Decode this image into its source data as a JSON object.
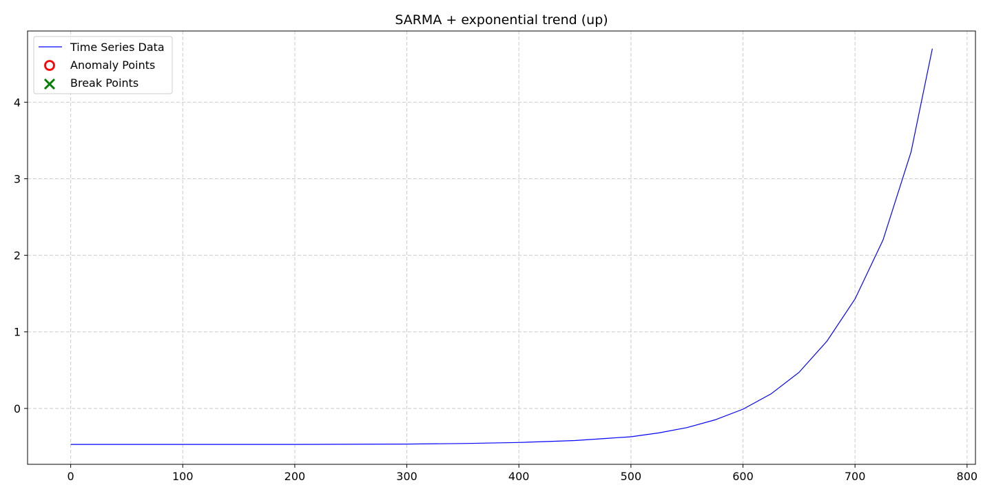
{
  "chart_data": {
    "type": "line",
    "title": "SARMA + exponential trend (up)",
    "xlabel": "",
    "ylabel": "",
    "xlim": [
      -38.5,
      807.5
    ],
    "ylim": [
      -0.73,
      4.93
    ],
    "xticks": [
      0,
      100,
      200,
      300,
      400,
      500,
      600,
      700,
      800
    ],
    "yticks": [
      0,
      1,
      2,
      3,
      4
    ],
    "grid": true,
    "legend_position": "top-left",
    "legend": [
      "Time Series Data",
      "Anomaly Points",
      "Break Points"
    ],
    "series": [
      {
        "name": "Time Series Data",
        "color": "#0000ff",
        "x": [
          0,
          100,
          200,
          300,
          350,
          400,
          450,
          500,
          525,
          550,
          575,
          600,
          625,
          650,
          675,
          700,
          725,
          750,
          769
        ],
        "y": [
          -0.47,
          -0.47,
          -0.47,
          -0.465,
          -0.458,
          -0.445,
          -0.42,
          -0.37,
          -0.32,
          -0.25,
          -0.15,
          -0.01,
          0.19,
          0.47,
          0.88,
          1.43,
          2.2,
          3.35,
          4.7
        ]
      },
      {
        "name": "Anomaly Points",
        "color": "#ff0000",
        "marker": "circle-open",
        "x": [],
        "y": []
      },
      {
        "name": "Break Points",
        "color": "#008000",
        "marker": "x",
        "x": [],
        "y": []
      }
    ]
  }
}
